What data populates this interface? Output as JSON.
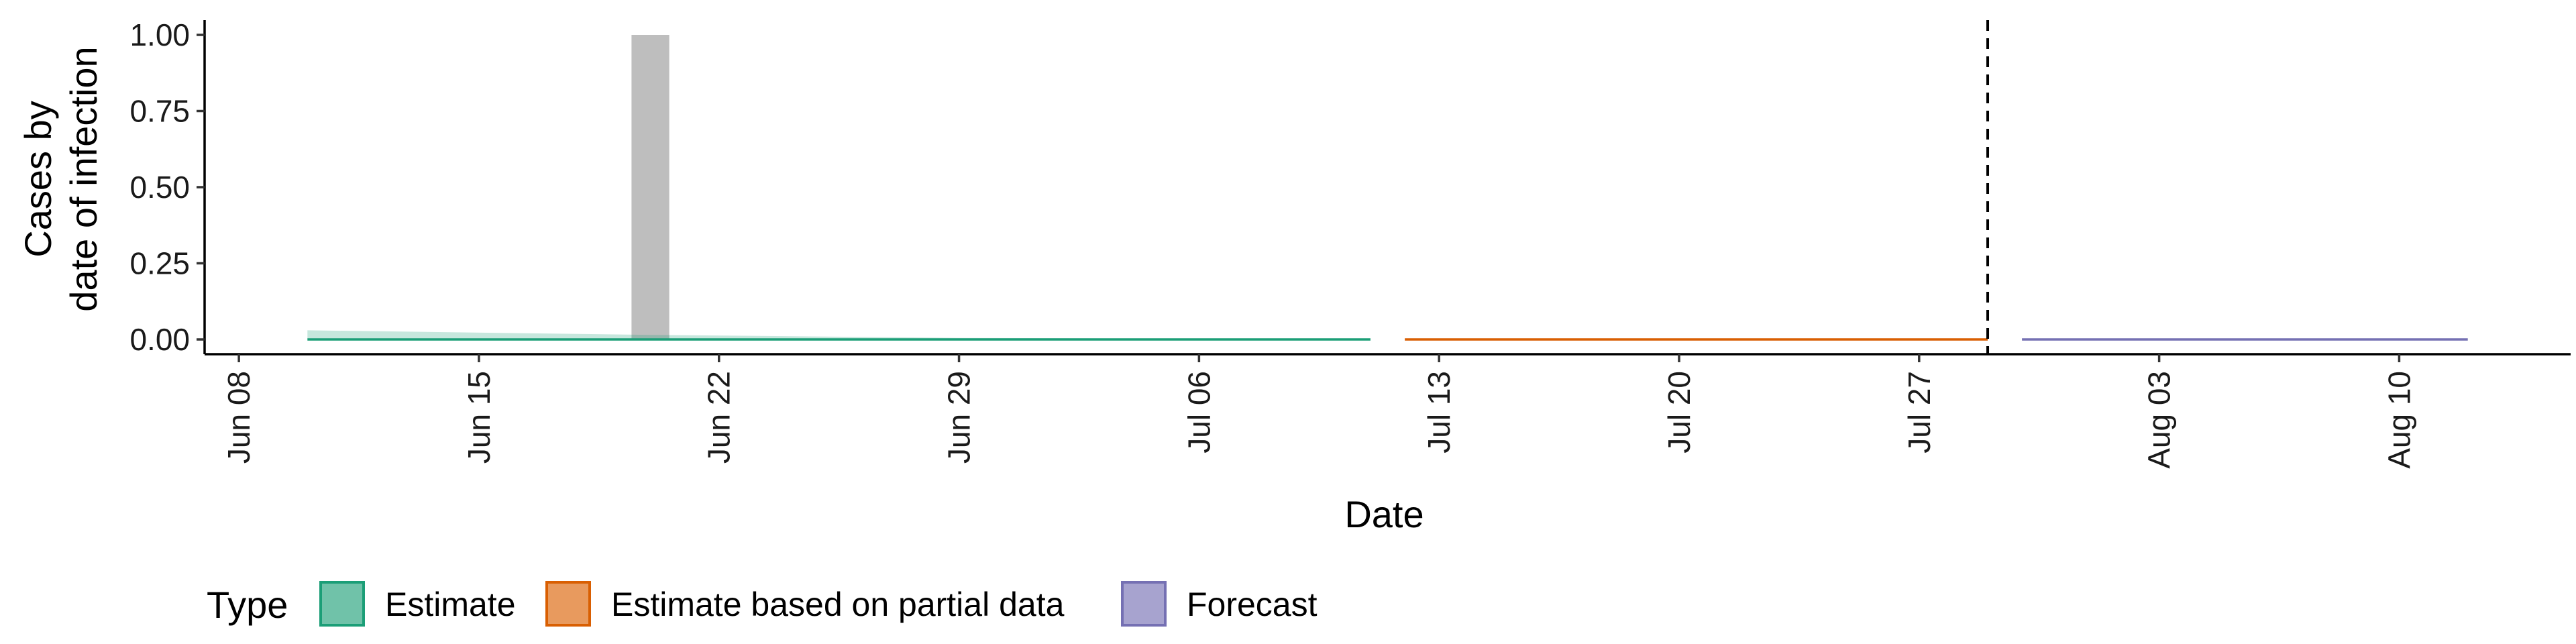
{
  "chart_data": {
    "type": "area",
    "xlabel": "Date",
    "ylabel": [
      "Cases by",
      "date of infection"
    ],
    "xlim": [
      "2020-06-07",
      "2020-08-15"
    ],
    "ylim": [
      0,
      1
    ],
    "x_ticks": [
      {
        "date": "2020-06-08",
        "label": "Jun 08"
      },
      {
        "date": "2020-06-15",
        "label": "Jun 15"
      },
      {
        "date": "2020-06-22",
        "label": "Jun 22"
      },
      {
        "date": "2020-06-29",
        "label": "Jun 29"
      },
      {
        "date": "2020-07-06",
        "label": "Jul 06"
      },
      {
        "date": "2020-07-13",
        "label": "Jul 13"
      },
      {
        "date": "2020-07-20",
        "label": "Jul 20"
      },
      {
        "date": "2020-07-27",
        "label": "Jul 27"
      },
      {
        "date": "2020-08-03",
        "label": "Aug 03"
      },
      {
        "date": "2020-08-10",
        "label": "Aug 10"
      }
    ],
    "y_ticks": [
      {
        "value": 0,
        "label": "0.00"
      },
      {
        "value": 0.25,
        "label": "0.25"
      },
      {
        "value": 0.5,
        "label": "0.50"
      },
      {
        "value": 0.75,
        "label": "0.75"
      },
      {
        "value": 1,
        "label": "1.00"
      }
    ],
    "observed_bars": [
      {
        "date": "2020-06-20",
        "value": 1.0
      }
    ],
    "forecast_date": "2020-07-29",
    "series": [
      {
        "name": "Estimate",
        "color": "#1B9E77",
        "points": [
          {
            "date": "2020-06-10",
            "lower": 0.0,
            "upper": 0.03
          },
          {
            "date": "2020-06-20",
            "lower": 0.0,
            "upper": 0.015
          },
          {
            "date": "2020-06-29",
            "lower": 0.0,
            "upper": 0.005
          },
          {
            "date": "2020-07-11",
            "lower": 0.0,
            "upper": 0.0
          }
        ]
      },
      {
        "name": "Estimate based on partial data",
        "color": "#D95F02",
        "points": [
          {
            "date": "2020-07-12",
            "lower": 0.0,
            "upper": 0.0
          },
          {
            "date": "2020-07-29",
            "lower": 0.0,
            "upper": 0.0
          }
        ]
      },
      {
        "name": "Forecast",
        "color": "#7570B3",
        "points": [
          {
            "date": "2020-07-30",
            "lower": 0.0,
            "upper": 0.0
          },
          {
            "date": "2020-08-12",
            "lower": 0.0,
            "upper": 0.0
          }
        ]
      }
    ],
    "legend": {
      "title": "Type",
      "placement": "bottom-left",
      "items": [
        {
          "label": "Estimate",
          "fill": "#70C2A9",
          "stroke": "#1B9E77"
        },
        {
          "label": "Estimate based on partial data",
          "fill": "#E89A5E",
          "stroke": "#D95F02"
        },
        {
          "label": "Forecast",
          "fill": "#A7A3CF",
          "stroke": "#7570B3"
        }
      ]
    },
    "bar_color": "#BEBEBE",
    "grid": false
  }
}
